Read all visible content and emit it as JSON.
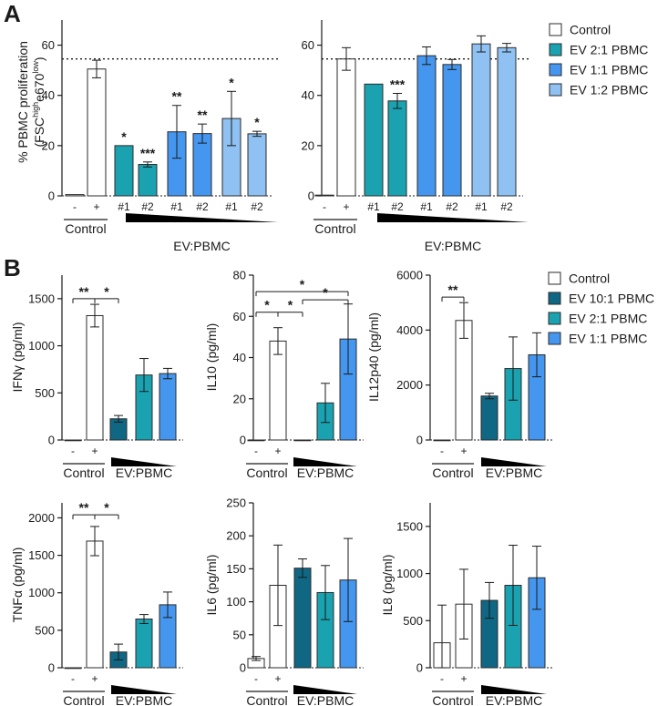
{
  "colors": {
    "control": "#ffffff",
    "ev10": "#0f6784",
    "ev21": "#1ba2b0",
    "ev11": "#4496ef",
    "ev12": "#8fc1f3",
    "stroke": "#2b2b2b"
  },
  "panels": {
    "a": "A",
    "b": "B"
  },
  "legendA": [
    {
      "label": "Control",
      "color": "#ffffff"
    },
    {
      "label": "EV 2:1 PBMC",
      "color": "#1ba2b0"
    },
    {
      "label": "EV 1:1 PBMC",
      "color": "#4496ef"
    },
    {
      "label": "EV 1:2 PBMC",
      "color": "#8fc1f3"
    }
  ],
  "legendB": [
    {
      "label": "Control",
      "color": "#ffffff"
    },
    {
      "label": "EV 10:1 PBMC",
      "color": "#0f6784"
    },
    {
      "label": "EV 2:1 PBMC",
      "color": "#1ba2b0"
    },
    {
      "label": "EV 1:1 PBMC",
      "color": "#4496ef"
    }
  ],
  "chart_data": [
    {
      "id": "A1",
      "type": "bar",
      "title": "",
      "ylabel": "% PBMC proliferation",
      "ylabel2": "(FSC^high e670^low)",
      "ylim": [
        0,
        70
      ],
      "yticks": [
        0,
        20,
        40,
        60
      ],
      "refline": 54.5,
      "categories": [
        "-",
        "+",
        "#1",
        "#2",
        "#1",
        "#2",
        "#1",
        "#2"
      ],
      "series_keys": [
        "control",
        "control",
        "ev21",
        "ev21",
        "ev11",
        "ev11",
        "ev12",
        "ev12"
      ],
      "values": [
        0.5,
        50.5,
        20,
        12.5,
        25.5,
        24.8,
        30.8,
        24.7
      ],
      "errors": [
        0,
        3.5,
        0,
        1,
        10.5,
        3.8,
        10.8,
        1
      ],
      "stars": [
        "",
        "",
        "*",
        "***",
        "**",
        "**",
        "*",
        "*"
      ],
      "xgroups": [
        "Control",
        "EV:PBMC"
      ]
    },
    {
      "id": "A2",
      "type": "bar",
      "title": "",
      "ylim": [
        0,
        70
      ],
      "yticks": [
        0,
        20,
        40,
        60
      ],
      "refline": 54.5,
      "categories": [
        "-",
        "+",
        "#1",
        "#2",
        "#1",
        "#2",
        "#1",
        "#2"
      ],
      "series_keys": [
        "control",
        "control",
        "ev21",
        "ev21",
        "ev11",
        "ev11",
        "ev12",
        "ev12"
      ],
      "values": [
        0.3,
        54.5,
        44.5,
        37.8,
        55.8,
        52.3,
        60.5,
        59
      ],
      "errors": [
        0,
        4.5,
        0,
        3,
        3.5,
        2,
        3.2,
        1.7
      ],
      "stars": [
        "",
        "",
        "",
        "***",
        "",
        "",
        "",
        ""
      ],
      "xgroups": [
        "Control",
        "EV:PBMC"
      ]
    },
    {
      "id": "IFNg",
      "type": "bar",
      "ylabel": "IFNγ (pg/ml)",
      "ylim": [
        0,
        1750
      ],
      "yticks": [
        0,
        500,
        1000,
        1500
      ],
      "categories": [
        "-",
        "+",
        "",
        "",
        ""
      ],
      "series_keys": [
        "control",
        "control",
        "ev10",
        "ev21",
        "ev11"
      ],
      "values": [
        0,
        1320,
        225,
        690,
        705
      ],
      "errors": [
        0,
        120,
        35,
        175,
        55
      ],
      "sig": [
        {
          "from": 0,
          "to": 2,
          "mid": 1,
          "y": 1500,
          "labels": [
            "**",
            "*"
          ]
        }
      ],
      "xgroups": [
        "Control",
        "EV:PBMC"
      ]
    },
    {
      "id": "IL10",
      "type": "bar",
      "ylabel": "IL10 (pg/ml)",
      "ylim": [
        0,
        80
      ],
      "yticks": [
        0,
        20,
        40,
        60,
        80
      ],
      "categories": [
        "-",
        "+",
        "",
        "",
        ""
      ],
      "series_keys": [
        "control",
        "control",
        "ev10",
        "ev21",
        "ev11"
      ],
      "values": [
        0,
        48,
        0,
        18,
        49
      ],
      "errors": [
        0,
        6.5,
        0,
        9.5,
        17
      ],
      "sig": [
        {
          "from": 0,
          "to": 4,
          "y": 72,
          "labels": [
            "*"
          ]
        },
        {
          "from": 2,
          "to": 4,
          "y": 68,
          "labels": [
            "*"
          ]
        },
        {
          "from": 0,
          "to": 2,
          "mid": 1,
          "y": 62,
          "labels": [
            "*",
            "*"
          ]
        }
      ],
      "xgroups": [
        "Control",
        "EV:PBMC"
      ]
    },
    {
      "id": "IL12p40",
      "type": "bar",
      "ylabel": "IL12p40 (pg/ml)",
      "ylim": [
        0,
        6000
      ],
      "yticks": [
        0,
        2000,
        4000,
        6000
      ],
      "categories": [
        "-",
        "+",
        "",
        "",
        ""
      ],
      "series_keys": [
        "control",
        "control",
        "ev10",
        "ev21",
        "ev11"
      ],
      "values": [
        0,
        4350,
        1600,
        2600,
        3100
      ],
      "errors": [
        0,
        650,
        100,
        1150,
        800
      ],
      "sig": [
        {
          "from": 0,
          "to": 1,
          "y": 5200,
          "labels": [
            "**"
          ]
        }
      ],
      "xgroups": [
        "Control",
        "EV:PBMC"
      ]
    },
    {
      "id": "TNFa",
      "type": "bar",
      "ylabel": "TNFα (pg/ml)",
      "ylim": [
        0,
        2200
      ],
      "yticks": [
        0,
        500,
        1000,
        1500,
        2000
      ],
      "categories": [
        "-",
        "+",
        "",
        "",
        ""
      ],
      "series_keys": [
        "control",
        "control",
        "ev10",
        "ev21",
        "ev11"
      ],
      "values": [
        0,
        1690,
        210,
        650,
        840
      ],
      "errors": [
        0,
        195,
        105,
        60,
        170
      ],
      "sig": [
        {
          "from": 0,
          "to": 2,
          "mid": 1,
          "y": 2040,
          "labels": [
            "**",
            "*"
          ]
        }
      ],
      "xgroups": [
        "Control",
        "EV:PBMC"
      ]
    },
    {
      "id": "IL6",
      "type": "bar",
      "ylabel": "IL6 (pg/ml)",
      "ylim": [
        0,
        250
      ],
      "yticks": [
        0,
        50,
        100,
        150,
        200,
        250
      ],
      "categories": [
        "-",
        "+",
        "",
        "",
        ""
      ],
      "series_keys": [
        "control",
        "control",
        "ev10",
        "ev21",
        "ev11"
      ],
      "values": [
        14,
        125,
        151,
        114,
        133
      ],
      "errors": [
        3,
        61,
        14,
        41,
        63
      ],
      "sig": [],
      "xgroups": [
        "Control",
        "EV:PBMC"
      ]
    },
    {
      "id": "IL8",
      "type": "bar",
      "ylabel": "IL8 (pg/ml)",
      "ylim": [
        0,
        1750
      ],
      "yticks": [
        0,
        500,
        1000,
        1500
      ],
      "categories": [
        "-",
        "+",
        "",
        "",
        ""
      ],
      "series_keys": [
        "control",
        "control",
        "ev10",
        "ev21",
        "ev11"
      ],
      "values": [
        265,
        675,
        715,
        875,
        955
      ],
      "errors": [
        400,
        370,
        190,
        425,
        335
      ],
      "sig": [],
      "xgroups": [
        "Control",
        "EV:PBMC"
      ]
    }
  ]
}
